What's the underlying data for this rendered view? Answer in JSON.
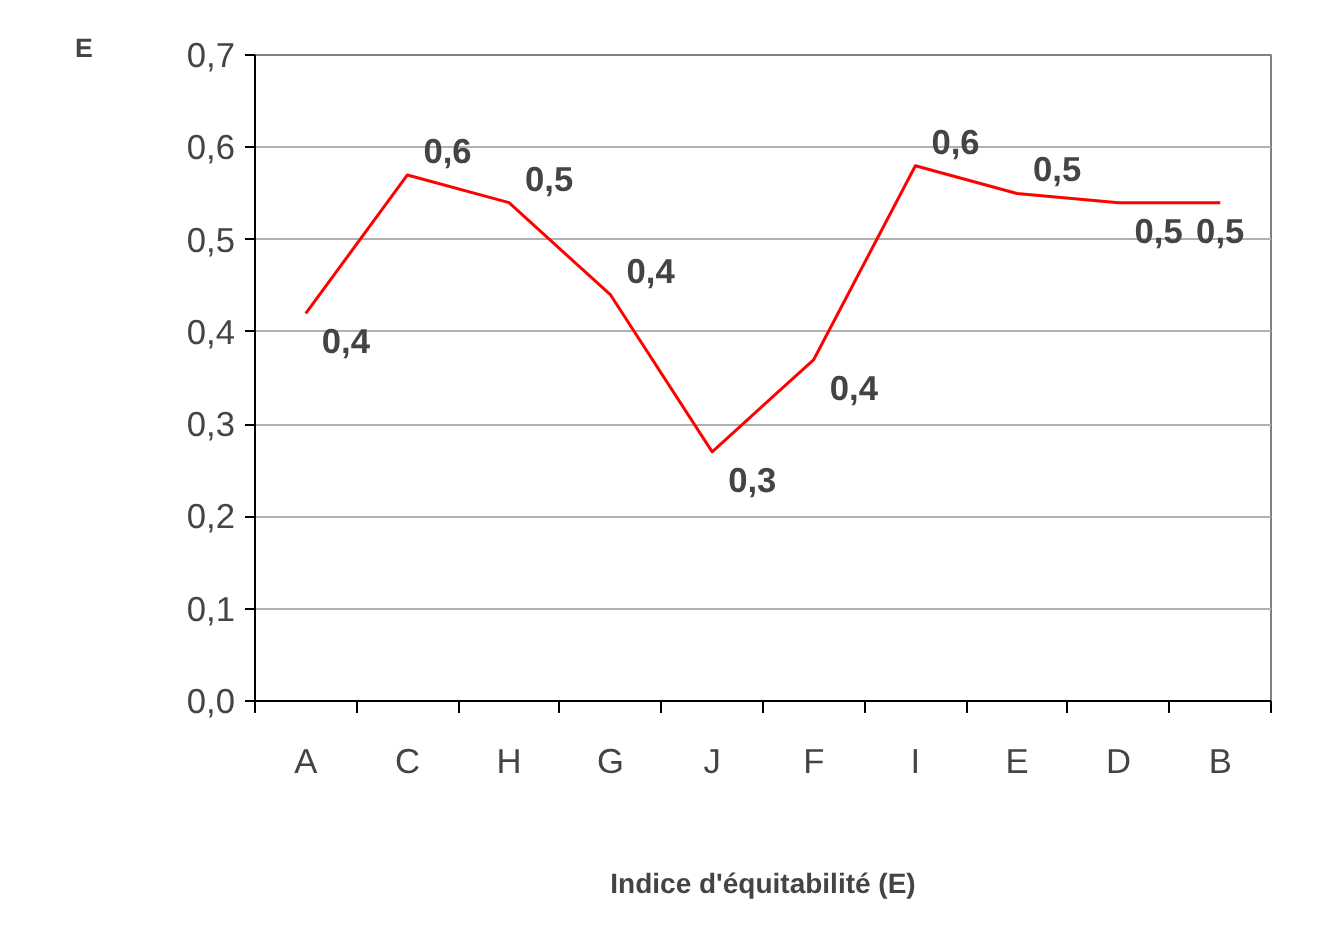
{
  "chart_data": {
    "type": "line",
    "ylabel": "E",
    "xlabel": "Indice d'équitabilité (E)",
    "categories": [
      "A",
      "C",
      "H",
      "G",
      "J",
      "F",
      "I",
      "E",
      "D",
      "B"
    ],
    "series": [
      {
        "color": "#ff0000",
        "values": [
          0.42,
          0.57,
          0.54,
          0.44,
          0.27,
          0.37,
          0.58,
          0.55,
          0.54,
          0.54
        ],
        "value_labels": [
          "0,4",
          "0,6",
          "0,5",
          "0,4",
          "0,3",
          "0,4",
          "0,6",
          "0,5",
          "0,5",
          "0,5"
        ]
      }
    ],
    "ylim": [
      0,
      0.7
    ],
    "yticks": [
      {
        "value": 0,
        "label": "0,0"
      },
      {
        "value": 0.1,
        "label": "0,1"
      },
      {
        "value": 0.2,
        "label": "0,2"
      },
      {
        "value": 0.3,
        "label": "0,3"
      },
      {
        "value": 0.4,
        "label": "0,4"
      },
      {
        "value": 0.5,
        "label": "0,5"
      },
      {
        "value": 0.6,
        "label": "0,6"
      },
      {
        "value": 0.7,
        "label": "0,7"
      }
    ],
    "grid": "y",
    "marker": "none",
    "line_style": "solid"
  }
}
